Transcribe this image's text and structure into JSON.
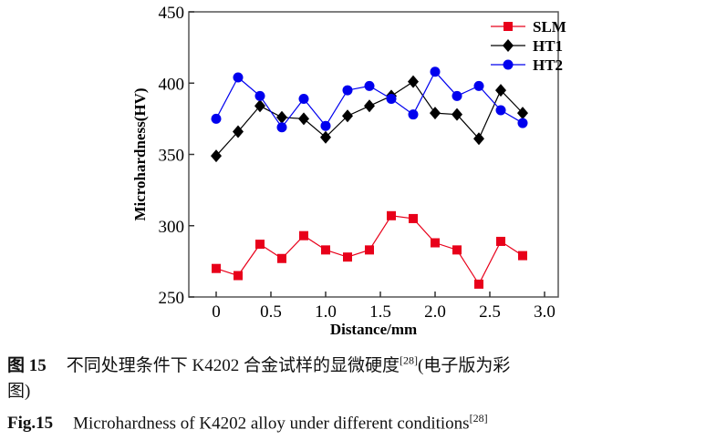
{
  "chart_data": {
    "type": "line",
    "xlabel": "Distance/mm",
    "ylabel": "Microhardness(HV)",
    "xlim": [
      -0.25,
      3.2
    ],
    "ylim": [
      250,
      450
    ],
    "xticks": [
      "0",
      "0.5",
      "1.0",
      "1.5",
      "2.0",
      "2.5",
      "3.0"
    ],
    "yticks": [
      "250",
      "300",
      "350",
      "400",
      "450"
    ],
    "x": [
      0,
      0.2,
      0.4,
      0.6,
      0.8,
      1.0,
      1.2,
      1.4,
      1.6,
      1.8,
      2.0,
      2.2,
      2.4,
      2.6,
      2.8
    ],
    "grid": false,
    "legend": "top-right",
    "series": [
      {
        "name": "SLM",
        "color": "#e8001a",
        "marker": "square",
        "values": [
          270,
          265,
          287,
          277,
          293,
          283,
          278,
          283,
          307,
          305,
          288,
          283,
          259,
          289,
          279
        ]
      },
      {
        "name": "HT1",
        "color": "#000000",
        "marker": "diamond",
        "values": [
          349,
          366,
          384,
          376,
          375,
          362,
          377,
          384,
          391,
          401,
          379,
          378,
          361,
          395,
          379
        ]
      },
      {
        "name": "HT2",
        "color": "#0000ee",
        "marker": "circle",
        "values": [
          375,
          404,
          391,
          369,
          389,
          370,
          395,
          398,
          389,
          378,
          408,
          391,
          398,
          381,
          372
        ]
      }
    ]
  },
  "caption": {
    "cn_label": "图 15",
    "cn_text": "不同处理条件下 K4202 合金试样的显微硬度",
    "cn_ref": "[28]",
    "cn_suffix": "(电子版为彩",
    "cn_suffix2": "图)",
    "en_label": "Fig.15",
    "en_text": "Microhardness of K4202 alloy under different conditions",
    "en_ref": "[28]"
  }
}
